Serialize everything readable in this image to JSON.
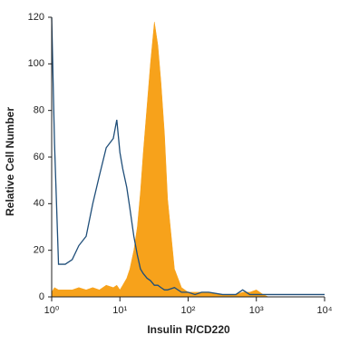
{
  "chart_data": {
    "type": "histogram-overlay",
    "xlabel": "Insulin R/CD220",
    "ylabel": "Relative Cell Number",
    "xscale": "log",
    "xlim": [
      1,
      10000
    ],
    "ylim": [
      0,
      120
    ],
    "xticks": [
      {
        "value": 1,
        "label": "10⁰"
      },
      {
        "value": 10,
        "label": "10¹"
      },
      {
        "value": 100,
        "label": "10²"
      },
      {
        "value": 1000,
        "label": "10³"
      },
      {
        "value": 10000,
        "label": "10⁴"
      }
    ],
    "yticks": [
      0,
      20,
      40,
      60,
      80,
      100,
      120
    ],
    "x": [
      1,
      1.1,
      1.26,
      1.58,
      2,
      2.5,
      3.2,
      4,
      5,
      6.3,
      8,
      9,
      10,
      11,
      12.6,
      14,
      16,
      18,
      20,
      22,
      25,
      28,
      32,
      36,
      40,
      45,
      50,
      63,
      80,
      100,
      126,
      158,
      200,
      320,
      500,
      630,
      800,
      1000,
      1260,
      1500,
      10000
    ],
    "series": [
      {
        "color": "#f7a21b",
        "filled": true,
        "values": [
          2,
          4,
          3,
          3,
          3,
          4,
          3,
          4,
          3,
          5,
          4,
          5,
          3,
          5,
          8,
          12,
          20,
          30,
          45,
          62,
          82,
          100,
          118,
          108,
          92,
          70,
          42,
          12,
          4,
          2,
          2,
          2,
          2,
          1,
          1,
          2,
          2,
          3,
          1,
          0,
          null
        ]
      },
      {
        "color": "#1f4e79",
        "filled": false,
        "values": [
          120,
          66,
          14,
          14,
          16,
          22,
          26,
          40,
          52,
          64,
          68,
          76,
          62,
          55,
          47,
          38,
          26,
          18,
          12,
          10,
          8,
          7,
          5,
          5,
          4,
          3,
          3,
          4,
          2,
          2,
          1,
          2,
          2,
          1,
          1,
          3,
          1,
          1,
          1,
          1,
          1
        ]
      }
    ]
  }
}
